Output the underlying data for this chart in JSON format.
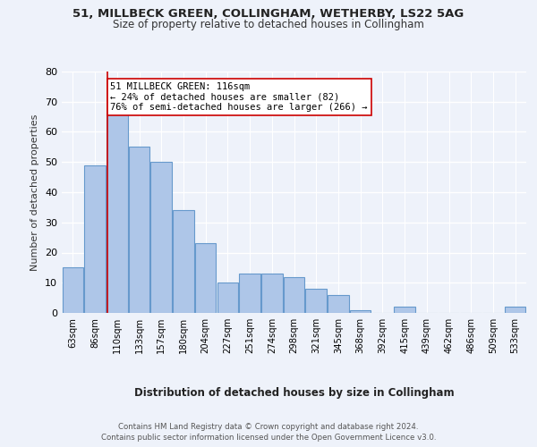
{
  "title1": "51, MILLBECK GREEN, COLLINGHAM, WETHERBY, LS22 5AG",
  "title2": "Size of property relative to detached houses in Collingham",
  "xlabel": "Distribution of detached houses by size in Collingham",
  "ylabel": "Number of detached properties",
  "footer1": "Contains HM Land Registry data © Crown copyright and database right 2024.",
  "footer2": "Contains public sector information licensed under the Open Government Licence v3.0.",
  "categories": [
    "63sqm",
    "86sqm",
    "110sqm",
    "133sqm",
    "157sqm",
    "180sqm",
    "204sqm",
    "227sqm",
    "251sqm",
    "274sqm",
    "298sqm",
    "321sqm",
    "345sqm",
    "368sqm",
    "392sqm",
    "415sqm",
    "439sqm",
    "462sqm",
    "486sqm",
    "509sqm",
    "533sqm"
  ],
  "values": [
    15,
    49,
    66,
    55,
    50,
    34,
    23,
    10,
    13,
    13,
    12,
    8,
    6,
    1,
    0,
    2,
    0,
    0,
    0,
    0,
    2
  ],
  "bar_color": "#aec6e8",
  "bar_edge_color": "#6699cc",
  "property_line_x": 2,
  "property_line_color": "#cc0000",
  "annotation_text": "51 MILLBECK GREEN: 116sqm\n← 24% of detached houses are smaller (82)\n76% of semi-detached houses are larger (266) →",
  "annotation_box_color": "#ffffff",
  "annotation_box_edge": "#cc0000",
  "ylim": [
    0,
    80
  ],
  "background_color": "#eef2fa",
  "grid_color": "#ffffff",
  "axes_bg_color": "#dce6f5"
}
